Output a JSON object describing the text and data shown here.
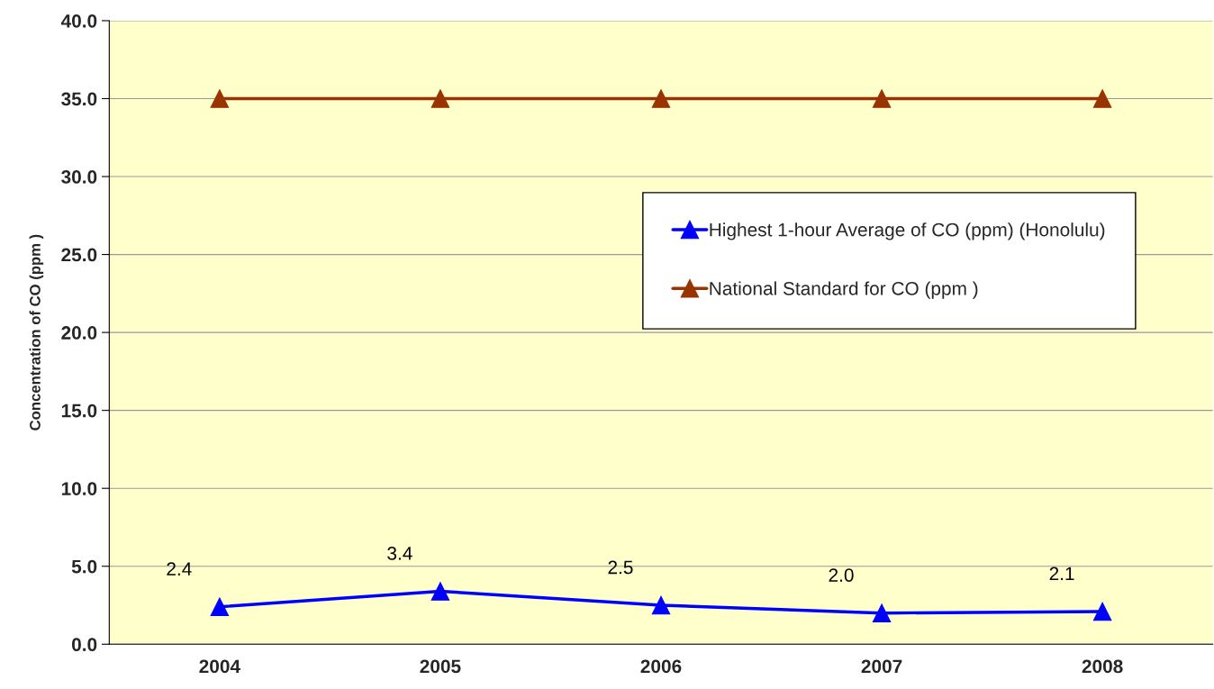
{
  "chart_data": {
    "type": "line",
    "ylabel": "Concentration of CO (ppm )",
    "categories": [
      "2004",
      "2005",
      "2006",
      "2007",
      "2008"
    ],
    "series": [
      {
        "name": "Highest 1-hour Average of CO (ppm) (Honolulu)",
        "color": "#0000ff",
        "values": [
          2.4,
          3.4,
          2.5,
          2.0,
          2.1
        ],
        "value_labels": [
          "2.4",
          "3.4",
          "2.5",
          "2.0",
          "2.1"
        ]
      },
      {
        "name": "National Standard for CO (ppm )",
        "color": "#993300",
        "values": [
          35,
          35,
          35,
          35,
          35
        ]
      }
    ],
    "ylim": [
      0,
      40
    ],
    "yticks": [
      {
        "value": 0,
        "label": "0.0"
      },
      {
        "value": 5,
        "label": "5.0"
      },
      {
        "value": 10,
        "label": "10.0"
      },
      {
        "value": 15,
        "label": "15.0"
      },
      {
        "value": 20,
        "label": "20.0"
      },
      {
        "value": 25,
        "label": "25.0"
      },
      {
        "value": 30,
        "label": "30.0"
      },
      {
        "value": 35,
        "label": "35.0"
      },
      {
        "value": 40,
        "label": "40.0"
      }
    ],
    "grid": "y",
    "legend": "right",
    "marker": "triangle",
    "line_style": "solid"
  }
}
